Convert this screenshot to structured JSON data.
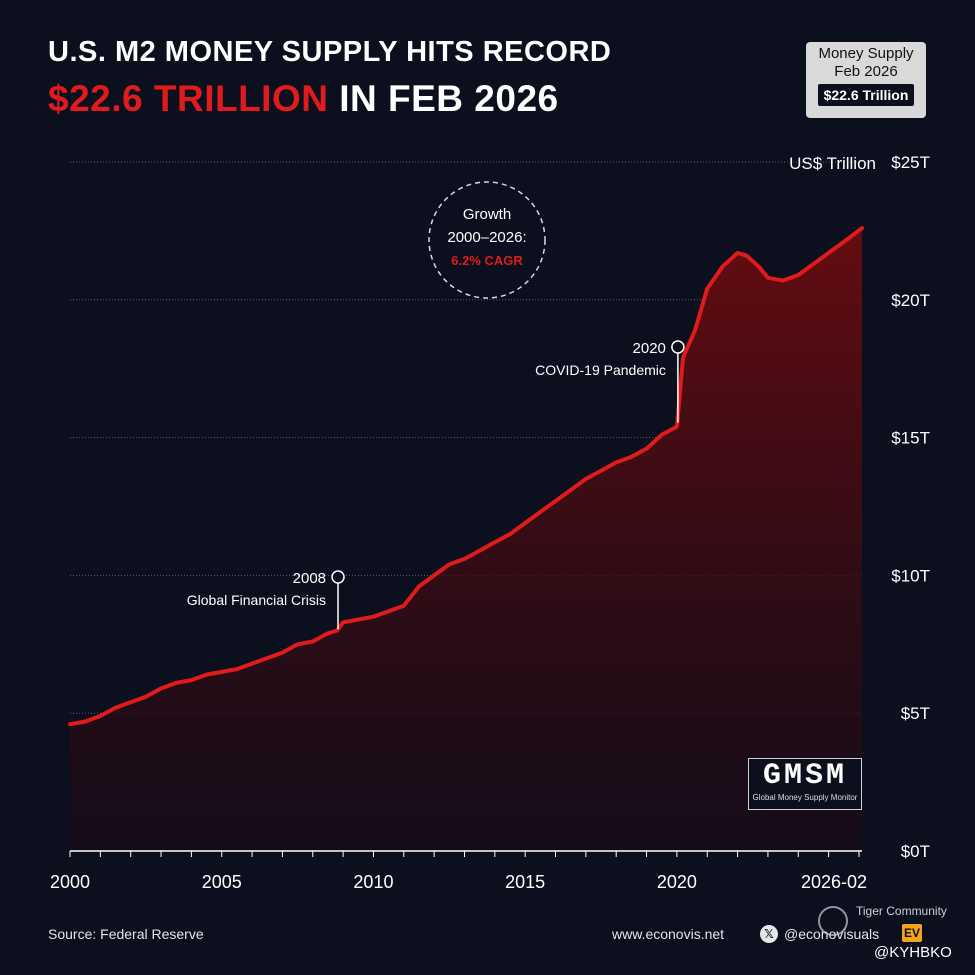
{
  "header": {
    "title_line1": "U.S. M2 MONEY SUPPLY HITS RECORD",
    "title_line2_accent": "$22.6 TRILLION",
    "title_line2_rest": " IN FEB 2026"
  },
  "badge": {
    "line1": "Money Supply",
    "line2": "Feb 2026",
    "value": "$22.6 Trillion"
  },
  "growth_note": {
    "line1": "Growth",
    "line2": "2000–2026:",
    "line3": "6.2% CAGR"
  },
  "annotations": [
    {
      "year_label": "2008",
      "text": "Global Financial Crisis",
      "x": 2008.8,
      "y": 7.9
    },
    {
      "year_label": "2020",
      "text": "COVID-19 Pandemic",
      "x": 2020.0,
      "y": 15.4
    }
  ],
  "logo": {
    "text": "GMSM",
    "subtext": "Global Money Supply Monitor"
  },
  "footer": {
    "source": "Source: Federal Reserve",
    "website": "www.econovis.net",
    "social": "@econovisuals",
    "community": "Tiger Community",
    "handle": "@KYHBKO"
  },
  "colors": {
    "background": "#0b0f1e",
    "line": "#e01b1b",
    "accent": "#e01b1b",
    "grid": "#5a5e6b"
  },
  "chart_data": {
    "type": "area",
    "title": "U.S. M2 MONEY SUPPLY HITS RECORD",
    "ylabel": "US$ Trillion",
    "xlim": [
      2000.0,
      2026.1
    ],
    "ylim": [
      0,
      25
    ],
    "x_ticks": [
      2000,
      2005,
      2010,
      2015,
      2020,
      "2026-02"
    ],
    "y_ticks": [
      "$0T",
      "$5T",
      "$10T",
      "$15T",
      "$20T",
      "$25T"
    ],
    "grid": true,
    "series": [
      {
        "x": [
          2000.0,
          2000.5,
          2001.0,
          2001.5,
          2002.0,
          2002.5,
          2003.0,
          2003.5,
          2004.0,
          2004.5,
          2005.0,
          2005.5,
          2006.0,
          2006.5,
          2007.0,
          2007.5,
          2008.0,
          2008.5,
          2008.8,
          2009.0,
          2009.5,
          2010.0,
          2010.5,
          2011.0,
          2011.5,
          2012.0,
          2012.5,
          2013.0,
          2013.5,
          2014.0,
          2014.5,
          2015.0,
          2015.5,
          2016.0,
          2016.5,
          2017.0,
          2017.5,
          2018.0,
          2018.5,
          2019.0,
          2019.5,
          2020.0,
          2020.2,
          2020.4,
          2020.6,
          2021.0,
          2021.5,
          2022.0,
          2022.3,
          2022.7,
          2023.0,
          2023.5,
          2024.0,
          2024.5,
          2025.0,
          2025.5,
          2026.1
        ],
        "y": [
          4.6,
          4.7,
          4.9,
          5.2,
          5.4,
          5.6,
          5.9,
          6.1,
          6.2,
          6.4,
          6.5,
          6.6,
          6.8,
          7.0,
          7.2,
          7.5,
          7.6,
          7.9,
          8.0,
          8.3,
          8.4,
          8.5,
          8.7,
          8.9,
          9.6,
          10.0,
          10.4,
          10.6,
          10.9,
          11.2,
          11.5,
          11.9,
          12.3,
          12.7,
          13.1,
          13.5,
          13.8,
          14.1,
          14.3,
          14.6,
          15.1,
          15.4,
          17.9,
          18.4,
          18.9,
          20.4,
          21.2,
          21.7,
          21.6,
          21.2,
          20.8,
          20.7,
          20.9,
          21.3,
          21.7,
          22.1,
          22.6
        ]
      }
    ]
  }
}
